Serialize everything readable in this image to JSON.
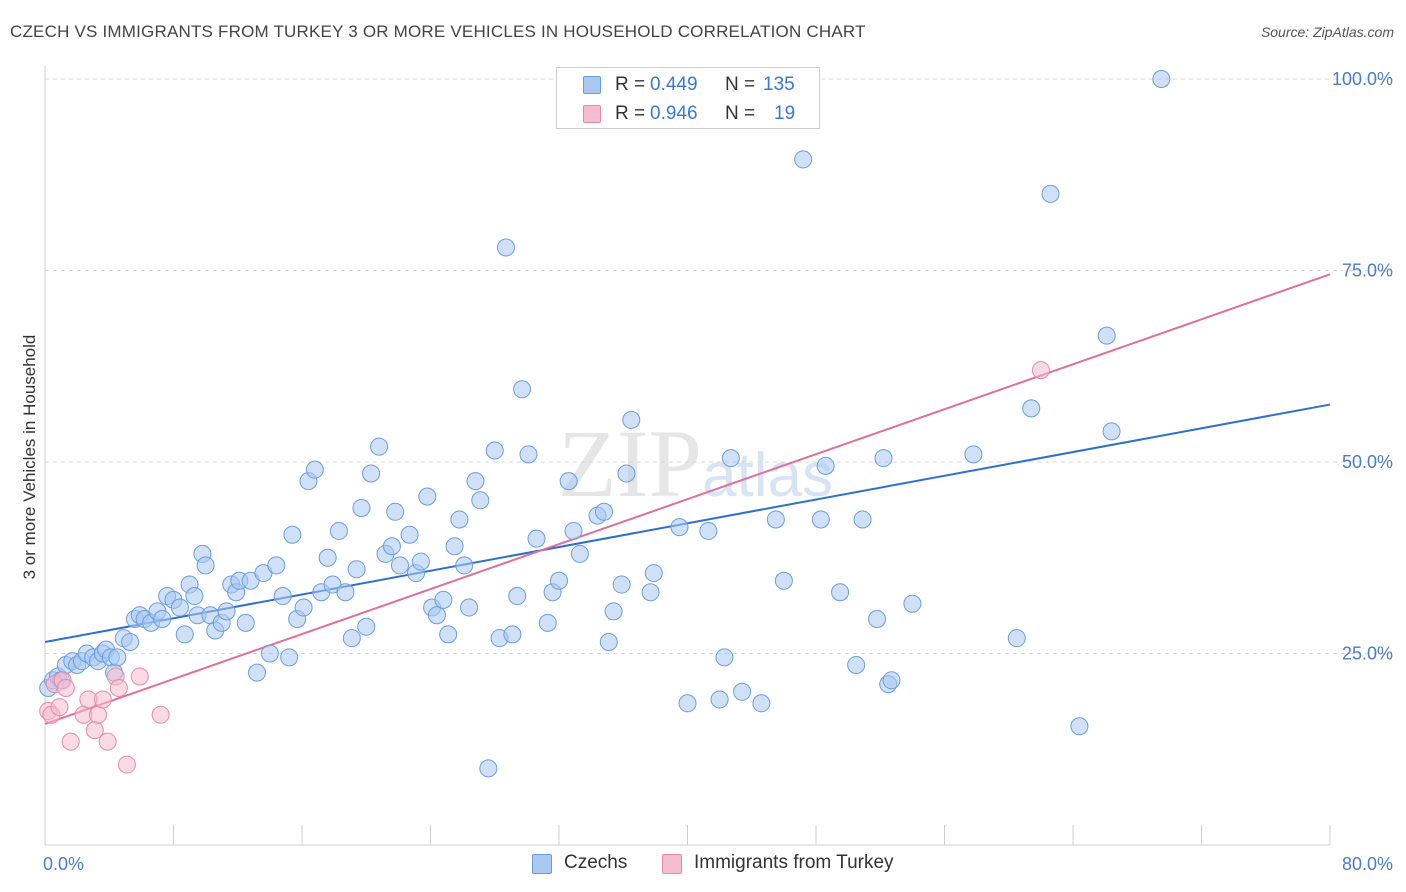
{
  "title": "CZECH VS IMMIGRANTS FROM TURKEY 3 OR MORE VEHICLES IN HOUSEHOLD CORRELATION CHART",
  "source": "Source: ZipAtlas.com",
  "watermark": {
    "zip": "ZIP",
    "atlas": "atlas"
  },
  "legend": {
    "czechs": {
      "r_label": "R =",
      "r_value": "0.449",
      "n_label": "N =",
      "n_value": "135"
    },
    "turkey": {
      "r_label": "R =",
      "r_value": "0.946",
      "n_label": "N =",
      "n_value": "19"
    }
  },
  "bottom_legend": {
    "czechs": "Czechs",
    "turkey": "Immigrants from Turkey"
  },
  "colors": {
    "czechs_fill": "#a9c8f0",
    "czechs_stroke": "#6a9ee0",
    "czechs_line": "#2f6fd0",
    "turkey_fill": "#f6bcd0",
    "turkey_stroke": "#e88aaa",
    "turkey_line": "#e0709a",
    "tick_text": "#4a7cc9"
  },
  "chart_data": {
    "type": "scatter",
    "ylabel": "3 or more Vehicles in Household",
    "xlim": [
      0,
      80
    ],
    "ylim": [
      0,
      100
    ],
    "x_tick_labels": [
      "0.0%",
      "80.0%"
    ],
    "y_ticks": [
      25,
      50,
      75,
      100
    ],
    "y_tick_labels": [
      "25.0%",
      "50.0%",
      "75.0%",
      "100.0%"
    ],
    "grid": "horizontal dashed",
    "series": [
      {
        "name": "Czechs",
        "points": [
          [
            0.2,
            20.5
          ],
          [
            0.5,
            21.5
          ],
          [
            0.8,
            22
          ],
          [
            1,
            21.5
          ],
          [
            1.3,
            23.5
          ],
          [
            1.7,
            24
          ],
          [
            2,
            23.5
          ],
          [
            2.3,
            24
          ],
          [
            2.6,
            25
          ],
          [
            3,
            24.5
          ],
          [
            3.3,
            24
          ],
          [
            3.6,
            25
          ],
          [
            3.8,
            25.5
          ],
          [
            4.1,
            24.5
          ],
          [
            4.3,
            22.5
          ],
          [
            4.5,
            24.5
          ],
          [
            4.9,
            27
          ],
          [
            5.3,
            26.5
          ],
          [
            5.6,
            29.5
          ],
          [
            5.9,
            30
          ],
          [
            6.2,
            29.5
          ],
          [
            6.6,
            29
          ],
          [
            7,
            30.5
          ],
          [
            7.3,
            29.5
          ],
          [
            7.6,
            32.5
          ],
          [
            8,
            32
          ],
          [
            8.4,
            31
          ],
          [
            8.7,
            27.5
          ],
          [
            9,
            34
          ],
          [
            9.3,
            32.5
          ],
          [
            9.5,
            30
          ],
          [
            9.8,
            38
          ],
          [
            10,
            36.5
          ],
          [
            10.3,
            30
          ],
          [
            10.6,
            28
          ],
          [
            11,
            29
          ],
          [
            11.3,
            30.5
          ],
          [
            11.6,
            34
          ],
          [
            11.9,
            33
          ],
          [
            12.1,
            34.5
          ],
          [
            12.5,
            29
          ],
          [
            12.8,
            34.5
          ],
          [
            13.2,
            22.5
          ],
          [
            13.6,
            35.5
          ],
          [
            14,
            25
          ],
          [
            14.4,
            36.5
          ],
          [
            14.8,
            32.5
          ],
          [
            15.2,
            24.5
          ],
          [
            15.4,
            40.5
          ],
          [
            15.7,
            29.5
          ],
          [
            16.1,
            31
          ],
          [
            16.4,
            47.5
          ],
          [
            16.8,
            49
          ],
          [
            17.2,
            33
          ],
          [
            17.6,
            37.5
          ],
          [
            17.9,
            34
          ],
          [
            18.3,
            41
          ],
          [
            18.7,
            33
          ],
          [
            19.1,
            27
          ],
          [
            19.4,
            36
          ],
          [
            19.7,
            44
          ],
          [
            20,
            28.5
          ],
          [
            20.3,
            48.5
          ],
          [
            20.8,
            52
          ],
          [
            21.2,
            38
          ],
          [
            21.6,
            39
          ],
          [
            21.8,
            43.5
          ],
          [
            22.1,
            36.5
          ],
          [
            22.7,
            40.5
          ],
          [
            23.1,
            35.5
          ],
          [
            23.4,
            37
          ],
          [
            23.8,
            45.5
          ],
          [
            24.1,
            31
          ],
          [
            24.4,
            30
          ],
          [
            24.8,
            32
          ],
          [
            25.1,
            27.5
          ],
          [
            25.5,
            39
          ],
          [
            25.8,
            42.5
          ],
          [
            26.1,
            36.5
          ],
          [
            26.4,
            31
          ],
          [
            26.8,
            47.5
          ],
          [
            27.1,
            45
          ],
          [
            27.6,
            10
          ],
          [
            28,
            51.5
          ],
          [
            28.3,
            27
          ],
          [
            28.7,
            78
          ],
          [
            29.1,
            27.5
          ],
          [
            29.4,
            32.5
          ],
          [
            29.7,
            59.5
          ],
          [
            30.1,
            51
          ],
          [
            30.6,
            40
          ],
          [
            31.3,
            29
          ],
          [
            31.6,
            33
          ],
          [
            32,
            34.5
          ],
          [
            32.6,
            47.5
          ],
          [
            32.9,
            41
          ],
          [
            33.3,
            38
          ],
          [
            34.4,
            43
          ],
          [
            34.8,
            43.5
          ],
          [
            35.1,
            26.5
          ],
          [
            35.4,
            30.5
          ],
          [
            35.9,
            34
          ],
          [
            36.2,
            48.5
          ],
          [
            36.5,
            55.5
          ],
          [
            37.7,
            33
          ],
          [
            37.9,
            35.5
          ],
          [
            39.5,
            41.5
          ],
          [
            40,
            18.5
          ],
          [
            41.3,
            41
          ],
          [
            42,
            19
          ],
          [
            42.3,
            24.5
          ],
          [
            42.7,
            50.5
          ],
          [
            43.4,
            20
          ],
          [
            44.6,
            18.5
          ],
          [
            45.5,
            42.5
          ],
          [
            46,
            34.5
          ],
          [
            47.2,
            89.5
          ],
          [
            48.3,
            42.5
          ],
          [
            48.6,
            49.5
          ],
          [
            49.5,
            33
          ],
          [
            50.5,
            23.5
          ],
          [
            50.9,
            42.5
          ],
          [
            51.8,
            29.5
          ],
          [
            52.2,
            50.5
          ],
          [
            52.5,
            21
          ],
          [
            52.7,
            21.5
          ],
          [
            54,
            31.5
          ],
          [
            57.8,
            51
          ],
          [
            60.5,
            27
          ],
          [
            61.4,
            57
          ],
          [
            62.6,
            85
          ],
          [
            64.4,
            15.5
          ],
          [
            66.1,
            66.5
          ],
          [
            66.4,
            54
          ],
          [
            69.5,
            100
          ]
        ],
        "trend": {
          "x": [
            0,
            80
          ],
          "y": [
            26.5,
            57.5
          ]
        }
      },
      {
        "name": "Immigrants from Turkey",
        "points": [
          [
            0.2,
            17.5
          ],
          [
            0.4,
            17
          ],
          [
            0.6,
            21
          ],
          [
            0.9,
            18
          ],
          [
            1.1,
            21.5
          ],
          [
            1.3,
            20.5
          ],
          [
            1.6,
            13.5
          ],
          [
            2.4,
            17
          ],
          [
            2.7,
            19
          ],
          [
            3.1,
            15
          ],
          [
            3.3,
            17
          ],
          [
            3.6,
            19
          ],
          [
            3.9,
            13.5
          ],
          [
            4.4,
            22
          ],
          [
            4.6,
            20.5
          ],
          [
            5.1,
            10.5
          ],
          [
            5.9,
            22
          ],
          [
            7.2,
            17
          ],
          [
            62,
            62
          ]
        ],
        "trend": {
          "x": [
            0,
            80
          ],
          "y": [
            15.8,
            74.5
          ]
        }
      }
    ]
  }
}
